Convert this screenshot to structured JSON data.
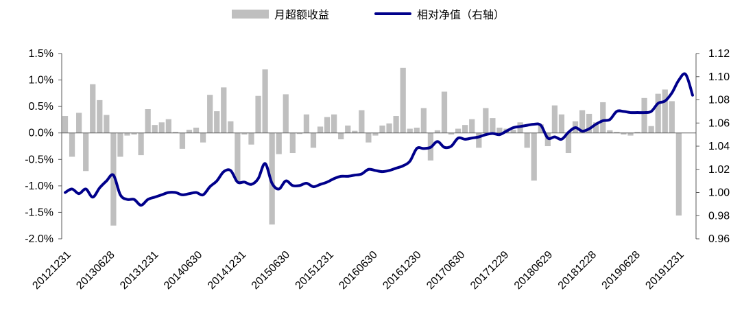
{
  "legend": {
    "bar_label": "月超额收益",
    "line_label": "相对净值（右轴）"
  },
  "colors": {
    "bar": "#bfbfbf",
    "line": "#00008B",
    "axis": "#595959"
  },
  "chart_data": {
    "type": "bar",
    "title": "",
    "left_axis": {
      "min": -2.0,
      "max": 1.5,
      "step": 0.5,
      "tick_labels": [
        "1.5%",
        "1.0%",
        "0.5%",
        "0.0%",
        "-0.5%",
        "-1.0%",
        "-1.5%",
        "-2.0%"
      ]
    },
    "right_axis": {
      "min": 0.96,
      "max": 1.12,
      "step": 0.02,
      "tick_labels": [
        "1.12",
        "1.10",
        "1.08",
        "1.06",
        "1.04",
        "1.02",
        "1.00",
        "0.98",
        "0.96"
      ]
    },
    "x_tick_labels": [
      "20121231",
      "20130628",
      "20131231",
      "20140630",
      "20141231",
      "20150630",
      "20151231",
      "20160630",
      "20161230",
      "20170630",
      "20171229",
      "20180629",
      "20181228",
      "20190628",
      "20191231"
    ],
    "series": [
      {
        "name": "月超额收益",
        "kind": "bar",
        "axis": "left",
        "values": [
          0.32,
          -0.45,
          0.38,
          -0.72,
          0.92,
          0.62,
          0.34,
          -1.75,
          -0.45,
          -0.05,
          -0.03,
          -0.42,
          0.45,
          0.15,
          0.2,
          0.26,
          0.02,
          -0.3,
          0.06,
          0.1,
          -0.18,
          0.72,
          0.41,
          0.86,
          0.22,
          -0.92,
          -0.03,
          -0.22,
          0.7,
          1.2,
          -1.73,
          -0.4,
          0.73,
          -0.38,
          -0.02,
          0.35,
          -0.28,
          0.12,
          0.3,
          0.35,
          -0.12,
          0.14,
          0.04,
          0.43,
          -0.18,
          -0.05,
          0.14,
          0.18,
          0.32,
          1.23,
          0.08,
          0.1,
          0.47,
          -0.52,
          0.05,
          0.78,
          -0.03,
          0.08,
          0.15,
          0.26,
          -0.28,
          0.47,
          0.28,
          0.1,
          0.08,
          0.06,
          0.2,
          -0.28,
          -0.9,
          0.16,
          -0.25,
          0.52,
          0.35,
          -0.38,
          0.22,
          0.43,
          0.36,
          0.2,
          0.58,
          0.05,
          0.02,
          -0.03,
          -0.05,
          0.02,
          0.66,
          0.13,
          0.74,
          0.82,
          0.6,
          -1.56
        ]
      },
      {
        "name": "相对净值（右轴）",
        "kind": "line",
        "axis": "right",
        "values": [
          1.0,
          1.003,
          0.999,
          1.003,
          0.996,
          1.004,
          1.01,
          1.015,
          0.998,
          0.994,
          0.994,
          0.989,
          0.994,
          0.996,
          0.998,
          1.0,
          1.0,
          0.998,
          0.999,
          1.0,
          0.998,
          1.005,
          1.01,
          1.018,
          1.019,
          1.009,
          1.009,
          1.007,
          1.012,
          1.025,
          1.008,
          1.003,
          1.01,
          1.006,
          1.006,
          1.008,
          1.005,
          1.007,
          1.009,
          1.012,
          1.014,
          1.014,
          1.015,
          1.016,
          1.02,
          1.019,
          1.018,
          1.019,
          1.021,
          1.023,
          1.027,
          1.038,
          1.038,
          1.039,
          1.044,
          1.039,
          1.04,
          1.047,
          1.046,
          1.047,
          1.048,
          1.05,
          1.051,
          1.05,
          1.053,
          1.056,
          1.057,
          1.058,
          1.059,
          1.058,
          1.047,
          1.048,
          1.046,
          1.052,
          1.056,
          1.053,
          1.055,
          1.059,
          1.062,
          1.063,
          1.07,
          1.07,
          1.069,
          1.069,
          1.069,
          1.07,
          1.077,
          1.079,
          1.086,
          1.097,
          1.102,
          1.084
        ]
      }
    ]
  }
}
